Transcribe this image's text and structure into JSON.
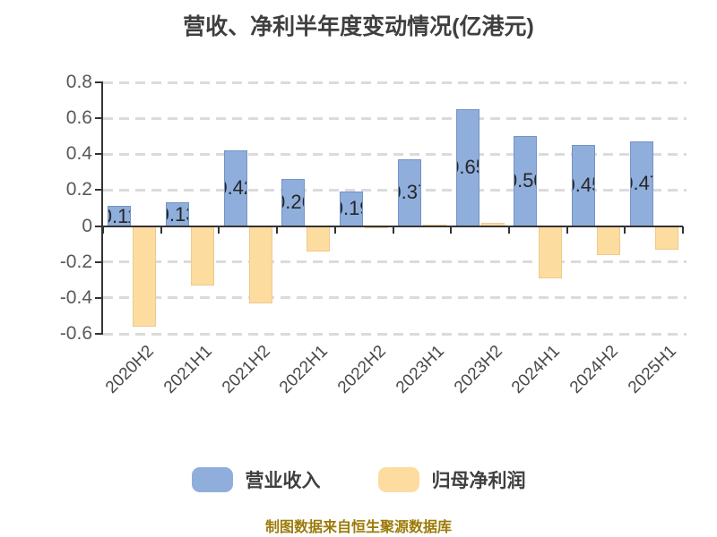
{
  "title": "营收、净利半年度变动情况(亿港元)",
  "footer": "制图数据来自恒生聚源数据库",
  "legend": [
    {
      "label": "营业收入",
      "color": "#8FAEDC"
    },
    {
      "label": "归母净利润",
      "color": "#FCDC9F"
    }
  ],
  "chart_data": {
    "type": "bar",
    "title": "营收、净利半年度变动情况(亿港元)",
    "categories": [
      "2020H2",
      "2021H1",
      "2021H2",
      "2022H1",
      "2022H2",
      "2023H1",
      "2023H2",
      "2024H1",
      "2024H2",
      "2025H1"
    ],
    "series": [
      {
        "name": "营业收入",
        "color": "#8FAEDC",
        "border_color": "#7493C4",
        "values": [
          0.11,
          0.13,
          0.42,
          0.26,
          0.19,
          0.37,
          0.65,
          0.5,
          0.45,
          0.47
        ],
        "labels": [
          "0.11",
          "0.13",
          "0.42",
          "0.26",
          "0.19",
          "0.37",
          "0.65",
          "0.50",
          "0.45",
          "0.47"
        ]
      },
      {
        "name": "归母净利润",
        "color": "#FCDC9F",
        "border_color": "#EFC98C",
        "values": [
          -0.56,
          -0.33,
          -0.43,
          -0.14,
          -0.01,
          0.01,
          0.02,
          -0.29,
          -0.16,
          -0.13
        ],
        "labels": []
      }
    ],
    "ylim": [
      -0.6,
      0.8
    ],
    "yticks": [
      0.8,
      0.6,
      0.4,
      0.2,
      0,
      -0.2,
      -0.4,
      -0.6
    ],
    "ytick_labels": [
      "0.8",
      "0.6",
      "0.4",
      "0.2",
      "0",
      "-0.2",
      "-0.4",
      "-0.6"
    ],
    "xlabel": "",
    "ylabel": "",
    "grid": "horizontal dashed",
    "legend_position": "bottom",
    "colors": {
      "axis": "#333333",
      "grid": "#DBDBDB",
      "ytick_text": "#595959",
      "xtick_text": "#4A4A4A",
      "value_label": "#262626",
      "title_text": "#3F3F3F",
      "footer_text": "#9C7A0A"
    }
  }
}
